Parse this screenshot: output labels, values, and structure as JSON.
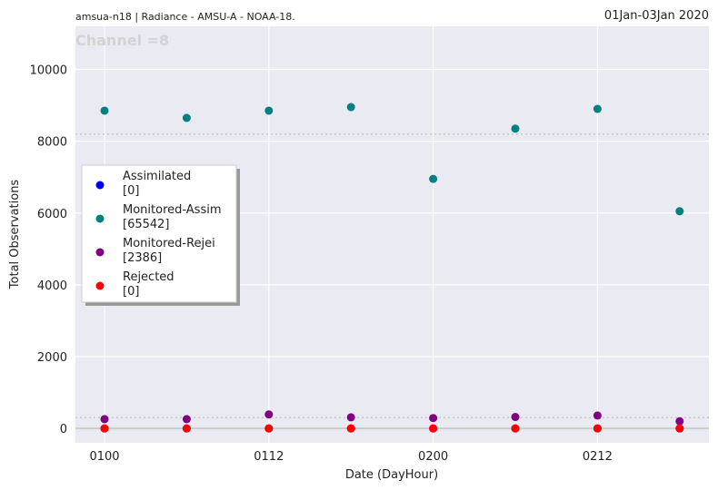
{
  "header": {
    "left": "amsua-n18  |  Radiance - AMSU-A - NOAA-18.",
    "right": "01Jan-03Jan 2020"
  },
  "chart_data": {
    "type": "scatter",
    "watermark": "Channel =8",
    "xlabel": "Date (DayHour)",
    "ylabel": "Total Observations",
    "categories": [
      "0100",
      "0106",
      "0112",
      "0118",
      "0200",
      "0206",
      "0212",
      "0218"
    ],
    "xticks": [
      "0100",
      "0112",
      "0200",
      "0212"
    ],
    "yticks": [
      "0",
      "2000",
      "4000",
      "6000",
      "8000",
      "10000"
    ],
    "ylim": [
      -400,
      11200
    ],
    "reference_lines": [
      8200,
      300
    ],
    "grid": true,
    "legend_position": "center-left",
    "series": [
      {
        "name": "Assimilated",
        "count": "[0]",
        "color": "#0000ff",
        "values": [
          0,
          0,
          0,
          0,
          0,
          0,
          0,
          0
        ]
      },
      {
        "name": "Monitored-Assim",
        "count": "[65542]",
        "color": "#008080",
        "values": [
          8850,
          8650,
          8850,
          8950,
          6950,
          8350,
          8900,
          6050
        ]
      },
      {
        "name": "Monitored-Rejei",
        "count": "[2386]",
        "color": "#800080",
        "values": [
          260,
          260,
          390,
          310,
          290,
          320,
          360,
          200
        ]
      },
      {
        "name": "Rejected",
        "count": "[0]",
        "color": "#ff0000",
        "values": [
          0,
          0,
          0,
          0,
          0,
          0,
          0,
          0
        ]
      }
    ]
  }
}
